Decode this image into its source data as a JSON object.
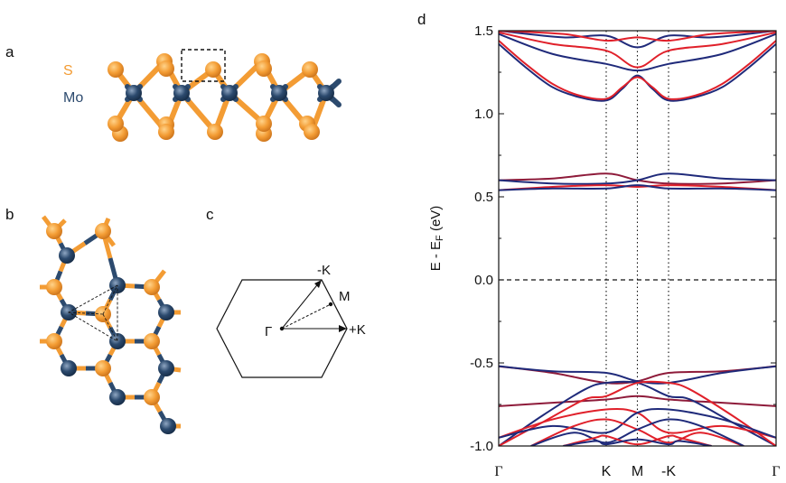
{
  "panels": {
    "a": "a",
    "b": "b",
    "c": "c",
    "d": "d"
  },
  "legend": {
    "s_label": "S",
    "mo_label": "Mo",
    "s_color": "#F39C34",
    "mo_color": "#2C4A6E"
  },
  "bz": {
    "gamma": "Γ",
    "minus_k": "-K",
    "m": "M",
    "plus_k": "+K"
  },
  "chart_data": {
    "type": "line",
    "title": "",
    "ylabel": "E - EF (eV)",
    "ylabel_main": "E - E",
    "ylabel_sub": "F",
    "ylabel_tail": " (eV)",
    "xlabel": "",
    "ylim": [
      -1.0,
      1.5
    ],
    "yticks": [
      "-1.0",
      "-0.5",
      "0.0",
      "0.5",
      "1.0",
      "1.5"
    ],
    "ytick_values": [
      -1.0,
      -0.5,
      0.0,
      0.5,
      1.0,
      1.5
    ],
    "kpath": [
      {
        "label": "Γ",
        "x": 0.0
      },
      {
        "label": "K",
        "x": 1.0
      },
      {
        "label": "M",
        "x": 1.29
      },
      {
        "label": "-K",
        "x": 1.58
      },
      {
        "label": "Γ",
        "x": 2.58
      }
    ],
    "fermi_level": 0.0,
    "colors": {
      "spin_up": "#E0202A",
      "spin_down": "#1F2A7A",
      "mixed": "#8E1B3A"
    },
    "series": [
      {
        "spin": "down",
        "x": [
          0,
          0.25,
          0.5,
          0.75,
          1.0,
          1.15,
          1.29,
          1.43,
          1.58,
          1.83,
          2.08,
          2.33,
          2.58
        ],
        "y": [
          1.42,
          1.28,
          1.16,
          1.1,
          1.08,
          1.15,
          1.23,
          1.15,
          1.08,
          1.1,
          1.16,
          1.28,
          1.42
        ]
      },
      {
        "spin": "up",
        "x": [
          0,
          0.25,
          0.5,
          0.75,
          1.0,
          1.15,
          1.29,
          1.43,
          1.58,
          1.83,
          2.08,
          2.33,
          2.58
        ],
        "y": [
          1.44,
          1.3,
          1.18,
          1.11,
          1.09,
          1.16,
          1.22,
          1.16,
          1.09,
          1.11,
          1.18,
          1.3,
          1.44
        ]
      },
      {
        "spin": "down",
        "x": [
          0,
          0.5,
          1.0,
          1.29,
          1.58,
          2.08,
          2.58
        ],
        "y": [
          1.48,
          1.36,
          1.3,
          1.26,
          1.3,
          1.36,
          1.48
        ]
      },
      {
        "spin": "up",
        "x": [
          0,
          0.5,
          1.0,
          1.29,
          1.58,
          2.08,
          2.58
        ],
        "y": [
          1.49,
          1.42,
          1.38,
          1.28,
          1.38,
          1.42,
          1.49
        ]
      },
      {
        "spin": "down",
        "x": [
          0,
          0.6,
          1.0,
          1.29,
          1.58,
          1.98,
          2.58
        ],
        "y": [
          1.5,
          1.46,
          1.47,
          1.4,
          1.47,
          1.46,
          1.5
        ]
      },
      {
        "spin": "up",
        "x": [
          0,
          0.6,
          1.0,
          1.29,
          1.58,
          1.98,
          2.58
        ],
        "y": [
          1.5,
          1.48,
          1.44,
          1.46,
          1.44,
          1.48,
          1.5
        ]
      },
      {
        "spin": "mixed",
        "x": [
          0,
          0.5,
          1.0,
          1.29,
          1.58,
          2.08,
          2.58
        ],
        "y": [
          0.6,
          0.61,
          0.64,
          0.6,
          0.58,
          0.58,
          0.6
        ]
      },
      {
        "spin": "down",
        "x": [
          0,
          0.5,
          1.0,
          1.29,
          1.58,
          2.08,
          2.58
        ],
        "y": [
          0.6,
          0.58,
          0.58,
          0.6,
          0.64,
          0.61,
          0.6
        ]
      },
      {
        "spin": "up",
        "x": [
          0,
          0.5,
          1.0,
          1.29,
          1.58,
          2.08,
          2.58
        ],
        "y": [
          0.54,
          0.56,
          0.57,
          0.56,
          0.57,
          0.56,
          0.54
        ]
      },
      {
        "spin": "down",
        "x": [
          0,
          0.5,
          1.0,
          1.29,
          1.58,
          2.08,
          2.58
        ],
        "y": [
          0.54,
          0.55,
          0.55,
          0.57,
          0.55,
          0.55,
          0.54
        ]
      },
      {
        "spin": "mixed",
        "x": [
          0,
          0.5,
          1.0,
          1.29,
          1.58,
          2.08,
          2.58
        ],
        "y": [
          -0.52,
          -0.56,
          -0.62,
          -0.61,
          -0.56,
          -0.55,
          -0.52
        ]
      },
      {
        "spin": "down",
        "x": [
          0,
          0.5,
          1.0,
          1.29,
          1.58,
          2.08,
          2.58
        ],
        "y": [
          -0.52,
          -0.55,
          -0.56,
          -0.61,
          -0.62,
          -0.56,
          -0.52
        ]
      },
      {
        "spin": "mixed",
        "x": [
          0,
          0.5,
          1.0,
          1.29,
          1.58,
          2.08,
          2.58
        ],
        "y": [
          -0.76,
          -0.74,
          -0.72,
          -0.7,
          -0.72,
          -0.74,
          -0.76
        ]
      },
      {
        "spin": "down",
        "x": [
          0,
          0.4,
          0.8,
          1.0,
          1.29,
          1.58,
          1.78,
          2.18,
          2.58
        ],
        "y": [
          -1.0,
          -0.82,
          -0.66,
          -0.62,
          -0.62,
          -0.7,
          -0.72,
          -0.86,
          -1.0
        ]
      },
      {
        "spin": "up",
        "x": [
          0,
          0.4,
          0.8,
          1.0,
          1.29,
          1.58,
          1.78,
          2.18,
          2.58
        ],
        "y": [
          -1.0,
          -0.86,
          -0.72,
          -0.7,
          -0.62,
          -0.62,
          -0.66,
          -0.82,
          -1.0
        ]
      },
      {
        "spin": "up",
        "x": [
          0,
          0.5,
          1.0,
          1.29,
          1.58,
          2.08,
          2.58
        ],
        "y": [
          -0.95,
          -0.84,
          -0.78,
          -0.8,
          -0.92,
          -0.88,
          -0.95
        ]
      },
      {
        "spin": "down",
        "x": [
          0,
          0.5,
          1.0,
          1.29,
          1.58,
          2.08,
          2.58
        ],
        "y": [
          -0.95,
          -0.88,
          -0.92,
          -0.8,
          -0.78,
          -0.84,
          -0.95
        ]
      },
      {
        "spin": "up",
        "x": [
          0.3,
          0.7,
          1.0,
          1.29,
          1.58,
          1.88,
          2.28
        ],
        "y": [
          -1.0,
          -0.88,
          -0.84,
          -0.9,
          -0.98,
          -0.92,
          -1.0
        ]
      },
      {
        "spin": "down",
        "x": [
          0.3,
          0.7,
          1.0,
          1.29,
          1.58,
          1.88,
          2.28
        ],
        "y": [
          -1.0,
          -0.92,
          -0.98,
          -0.9,
          -0.84,
          -0.88,
          -1.0
        ]
      },
      {
        "spin": "up",
        "x": [
          0.6,
          0.9,
          1.0,
          1.29,
          1.58,
          1.68,
          1.98
        ],
        "y": [
          -1.0,
          -0.95,
          -0.94,
          -0.99,
          -0.94,
          -0.95,
          -1.0
        ]
      },
      {
        "spin": "down",
        "x": [
          0.6,
          0.9,
          1.0,
          1.29,
          1.58,
          1.68,
          1.98
        ],
        "y": [
          -1.0,
          -0.97,
          -0.99,
          -0.96,
          -0.99,
          -0.97,
          -1.0
        ]
      }
    ]
  }
}
